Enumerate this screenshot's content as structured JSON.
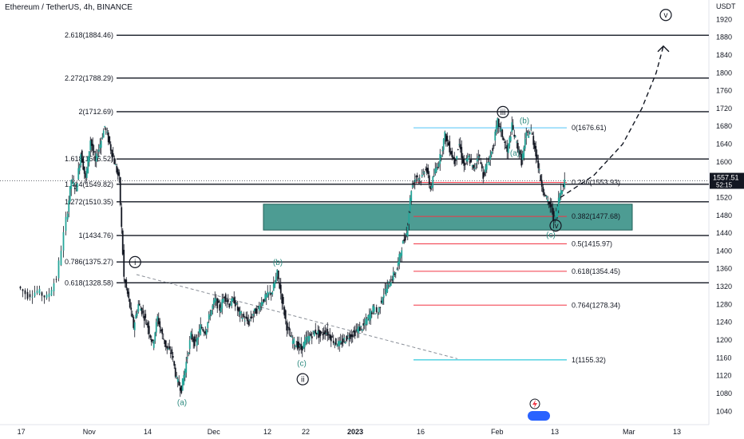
{
  "header": {
    "title": "Ethereum / TetherUS, 4h, BINANCE"
  },
  "price_badge": {
    "price": "1557.51",
    "countdown": "52:15"
  },
  "chart_data": {
    "type": "candlestick",
    "title": "Ethereum / TetherUS, 4h, BINANCE",
    "yunit": "USDT",
    "ylim": [
      1010,
      1960
    ],
    "y_ticks": [
      1040,
      1080,
      1120,
      1160,
      1200,
      1240,
      1280,
      1320,
      1360,
      1400,
      1440,
      1480,
      1520,
      1560,
      1600,
      1640,
      1680,
      1720,
      1760,
      1800,
      1840,
      1880,
      1920
    ],
    "x_ticks": [
      {
        "label": "17",
        "t": 0.6
      },
      {
        "label": "Nov",
        "t": 14.3
      },
      {
        "label": "14",
        "t": 27.0
      },
      {
        "label": "Dec",
        "t": 40.3
      },
      {
        "label": "12",
        "t": 52.0
      },
      {
        "label": "22",
        "t": 60.0
      },
      {
        "label": "2023",
        "t": 69.5
      },
      {
        "label": "16",
        "t": 84.0
      },
      {
        "label": "Feb",
        "t": 99.5
      },
      {
        "label": "13",
        "t": 112.0
      },
      {
        "label": "Mar",
        "t": 127.0
      },
      {
        "label": "13",
        "t": 137.5
      }
    ],
    "price_path": [
      [
        0,
        1320
      ],
      [
        2,
        1300
      ],
      [
        4,
        1310
      ],
      [
        6,
        1295
      ],
      [
        8,
        1340
      ],
      [
        10,
        1470
      ],
      [
        11,
        1560
      ],
      [
        12,
        1540
      ],
      [
        13,
        1620
      ],
      [
        14,
        1560
      ],
      [
        15,
        1650
      ],
      [
        16,
        1600
      ],
      [
        17,
        1640
      ],
      [
        18,
        1680
      ],
      [
        19,
        1640
      ],
      [
        20,
        1600
      ],
      [
        21,
        1560
      ],
      [
        22,
        1340
      ],
      [
        23,
        1290
      ],
      [
        24,
        1230
      ],
      [
        25,
        1280
      ],
      [
        26,
        1260
      ],
      [
        27,
        1230
      ],
      [
        28,
        1190
      ],
      [
        29,
        1250
      ],
      [
        30,
        1210
      ],
      [
        31,
        1180
      ],
      [
        32,
        1170
      ],
      [
        33,
        1110
      ],
      [
        34,
        1090
      ],
      [
        35,
        1150
      ],
      [
        36,
        1210
      ],
      [
        37,
        1190
      ],
      [
        38,
        1230
      ],
      [
        39,
        1220
      ],
      [
        40,
        1260
      ],
      [
        41,
        1290
      ],
      [
        42,
        1270
      ],
      [
        43,
        1300
      ],
      [
        44,
        1280
      ],
      [
        45,
        1290
      ],
      [
        46,
        1260
      ],
      [
        47,
        1250
      ],
      [
        48,
        1240
      ],
      [
        49,
        1260
      ],
      [
        50,
        1270
      ],
      [
        51,
        1290
      ],
      [
        52,
        1300
      ],
      [
        53,
        1310
      ],
      [
        54,
        1350
      ],
      [
        55,
        1290
      ],
      [
        56,
        1230
      ],
      [
        57,
        1200
      ],
      [
        58,
        1190
      ],
      [
        59,
        1180
      ],
      [
        60,
        1200
      ],
      [
        61,
        1210
      ],
      [
        62,
        1220
      ],
      [
        63,
        1210
      ],
      [
        64,
        1220
      ],
      [
        65,
        1210
      ],
      [
        66,
        1195
      ],
      [
        67,
        1190
      ],
      [
        68,
        1200
      ],
      [
        69,
        1210
      ],
      [
        70,
        1215
      ],
      [
        71,
        1225
      ],
      [
        72,
        1230
      ],
      [
        73,
        1250
      ],
      [
        74,
        1270
      ],
      [
        75,
        1260
      ],
      [
        76,
        1300
      ],
      [
        77,
        1320
      ],
      [
        78,
        1340
      ],
      [
        79,
        1360
      ],
      [
        80,
        1410
      ],
      [
        81,
        1440
      ],
      [
        82,
        1540
      ],
      [
        83,
        1570
      ],
      [
        84,
        1560
      ],
      [
        85,
        1590
      ],
      [
        86,
        1540
      ],
      [
        87,
        1580
      ],
      [
        88,
        1610
      ],
      [
        89,
        1660
      ],
      [
        90,
        1630
      ],
      [
        91,
        1600
      ],
      [
        92,
        1640
      ],
      [
        93,
        1590
      ],
      [
        94,
        1610
      ],
      [
        95,
        1580
      ],
      [
        96,
        1620
      ],
      [
        97,
        1570
      ],
      [
        98,
        1600
      ],
      [
        99,
        1630
      ],
      [
        100,
        1690
      ],
      [
        101,
        1660
      ],
      [
        102,
        1620
      ],
      [
        103,
        1680
      ],
      [
        104,
        1640
      ],
      [
        105,
        1600
      ],
      [
        106,
        1660
      ],
      [
        107,
        1670
      ],
      [
        108,
        1620
      ],
      [
        109,
        1560
      ],
      [
        110,
        1520
      ],
      [
        111,
        1500
      ],
      [
        112,
        1470
      ],
      [
        113,
        1530
      ],
      [
        114,
        1557.51
      ]
    ],
    "fib_lines_left": [
      {
        "label": "2.618(1884.46)",
        "value": 1884.46
      },
      {
        "label": "2.272(1788.29)",
        "value": 1788.29
      },
      {
        "label": "2(1712.69)",
        "value": 1712.69
      },
      {
        "label": "1.618(1606.52)",
        "value": 1606.52
      },
      {
        "label": "1.414(1549.82)",
        "value": 1549.82
      },
      {
        "label": "1.272(1510.35)",
        "value": 1510.35
      },
      {
        "label": "1(1434.76)",
        "value": 1434.76
      },
      {
        "label": "0.786(1375.27)",
        "value": 1375.27
      },
      {
        "label": "0.618(1328.58)",
        "value": 1328.58
      }
    ],
    "fib_lines_right": [
      {
        "label": "0(1676.61)",
        "value": 1676.61,
        "color": "#4fc3f7"
      },
      {
        "label": "0.236(1553.93)",
        "value": 1553.93,
        "color": "#f23645"
      },
      {
        "label": "0.382(1477.68)",
        "value": 1477.68,
        "color": "#f23645"
      },
      {
        "label": "0.5(1415.97)",
        "value": 1415.97,
        "color": "#f23645"
      },
      {
        "label": "0.618(1354.45)",
        "value": 1354.45,
        "color": "#f23645"
      },
      {
        "label": "0.764(1278.34)",
        "value": 1278.34,
        "color": "#f23645"
      },
      {
        "label": "1(1155.32)",
        "value": 1155.32,
        "color": "#00bcd4"
      }
    ],
    "zone": {
      "top": 1505,
      "bottom": 1447,
      "color": "#2e8b80"
    },
    "wave_labels": [
      {
        "text": "i",
        "t": 24.2,
        "v": 1375,
        "circled": true
      },
      {
        "text": "(a)",
        "t": 34.0,
        "v": 1060,
        "circled": false
      },
      {
        "text": "(b)",
        "t": 54.0,
        "v": 1375,
        "circled": false
      },
      {
        "text": "(c)",
        "t": 59.0,
        "v": 1148,
        "circled": false
      },
      {
        "text": "ii",
        "t": 59.2,
        "v": 1112,
        "circled": true
      },
      {
        "text": "iii",
        "t": 101.0,
        "v": 1712,
        "circled": true
      },
      {
        "text": "(b)",
        "t": 105.5,
        "v": 1693,
        "circled": false
      },
      {
        "text": "(a)",
        "t": 103.5,
        "v": 1620,
        "circled": false
      },
      {
        "text": "(c)",
        "t": 111.0,
        "v": 1437,
        "circled": false
      },
      {
        "text": "iv",
        "t": 112.0,
        "v": 1457,
        "circled": true
      },
      {
        "text": "v",
        "t": 135.0,
        "v": 1930,
        "circled": true
      }
    ],
    "projection": [
      [
        113,
        1520
      ],
      [
        120,
        1570
      ],
      [
        126,
        1640
      ],
      [
        130,
        1720
      ],
      [
        133,
        1800
      ],
      [
        134.5,
        1860
      ]
    ],
    "trendline": [
      [
        24.5,
        1347
      ],
      [
        91.5,
        1158
      ]
    ]
  }
}
